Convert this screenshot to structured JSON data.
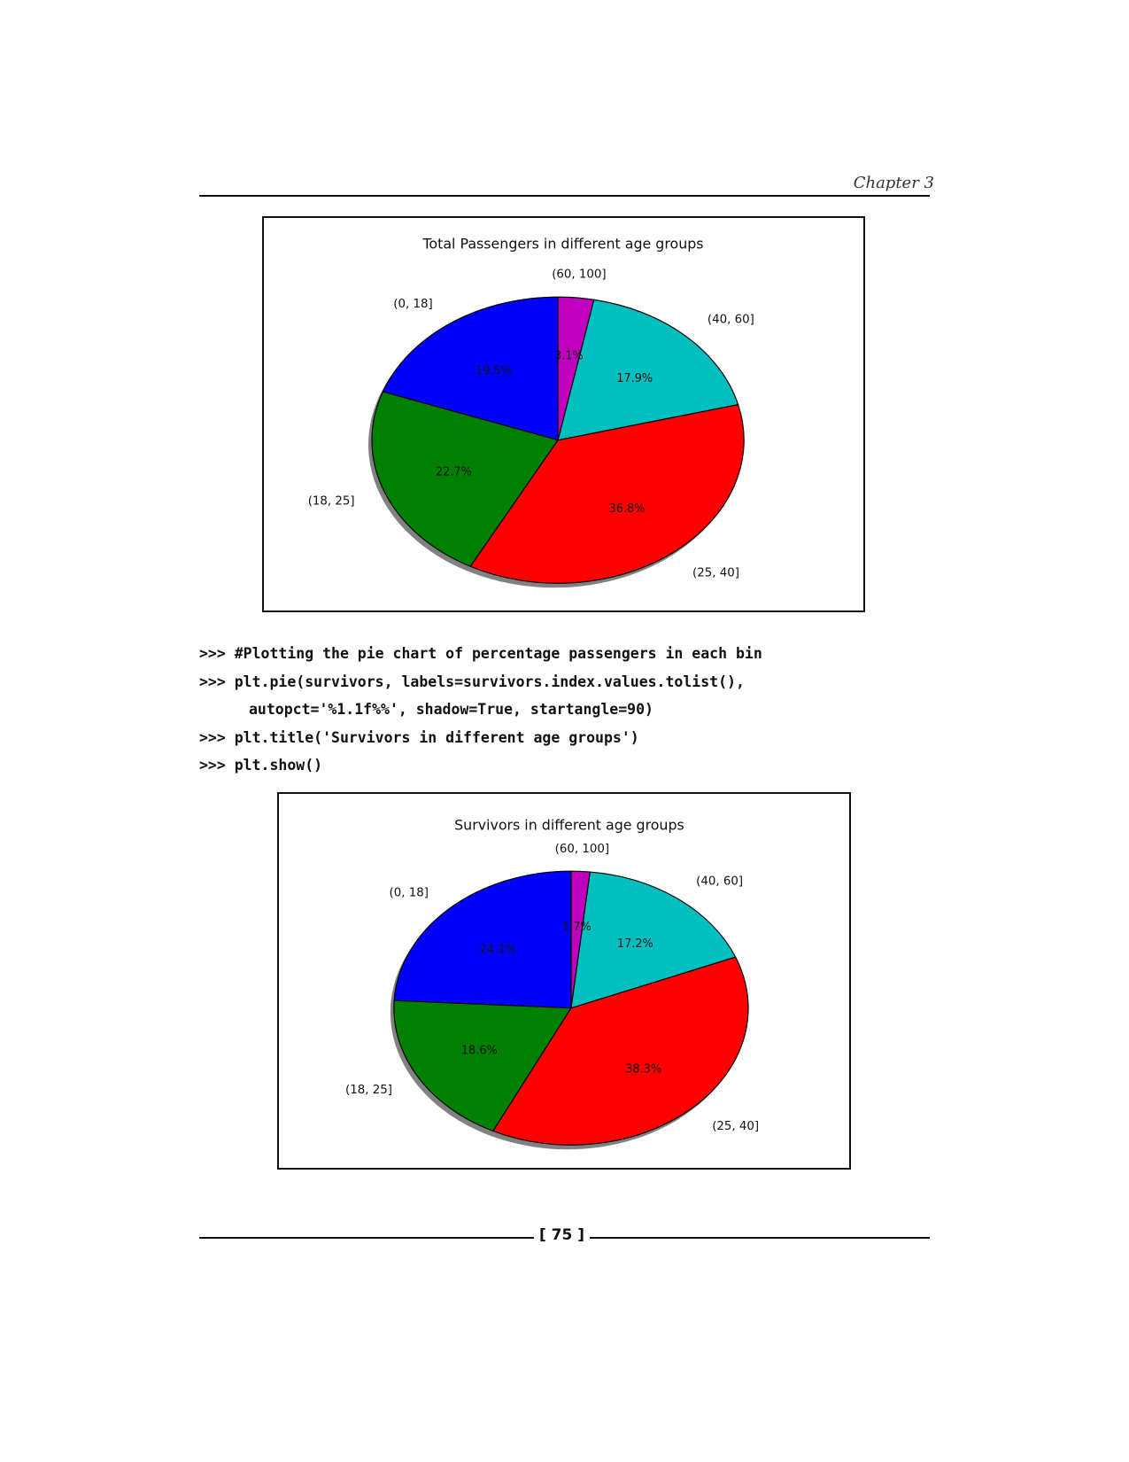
{
  "header": {
    "chapter": "Chapter 3"
  },
  "code": {
    "lines": [
      ">>> #Plotting the pie chart of percentage passengers in each bin",
      ">>> plt.pie(survivors, labels=survivors.index.values.tolist(),",
      "autopct='%1.1f%%', shadow=True, startangle=90)",
      ">>> plt.title('Survivors in different age groups')",
      ">>> plt.show()"
    ]
  },
  "footer": {
    "page_number": "[ 75 ]"
  },
  "chart_data": [
    {
      "type": "pie",
      "title": "Total Passengers in different age groups",
      "startangle": 90,
      "shadow": true,
      "direction": "counterclockwise",
      "categories": [
        "(0, 18]",
        "(18, 25]",
        "(25, 40]",
        "(40, 60]",
        "(60, 100]"
      ],
      "values": [
        19.5,
        22.7,
        36.8,
        17.9,
        3.1
      ],
      "pct_labels": [
        "19.5%",
        "22.7%",
        "36.8%",
        "17.9%",
        "3.1%"
      ],
      "colors": [
        "#0000ff",
        "#008000",
        "#ff0000",
        "#00bfbf",
        "#bf00bf"
      ]
    },
    {
      "type": "pie",
      "title": "Survivors in different age groups",
      "startangle": 90,
      "shadow": true,
      "direction": "counterclockwise",
      "categories": [
        "(0, 18]",
        "(18, 25]",
        "(25, 40]",
        "(40, 60]",
        "(60, 100]"
      ],
      "values": [
        24.1,
        18.6,
        38.3,
        17.2,
        1.7
      ],
      "pct_labels": [
        "24.1%",
        "18.6%",
        "38.3%",
        "17.2%",
        "1.7%"
      ],
      "colors": [
        "#0000ff",
        "#008000",
        "#ff0000",
        "#00bfbf",
        "#bf00bf"
      ]
    }
  ]
}
